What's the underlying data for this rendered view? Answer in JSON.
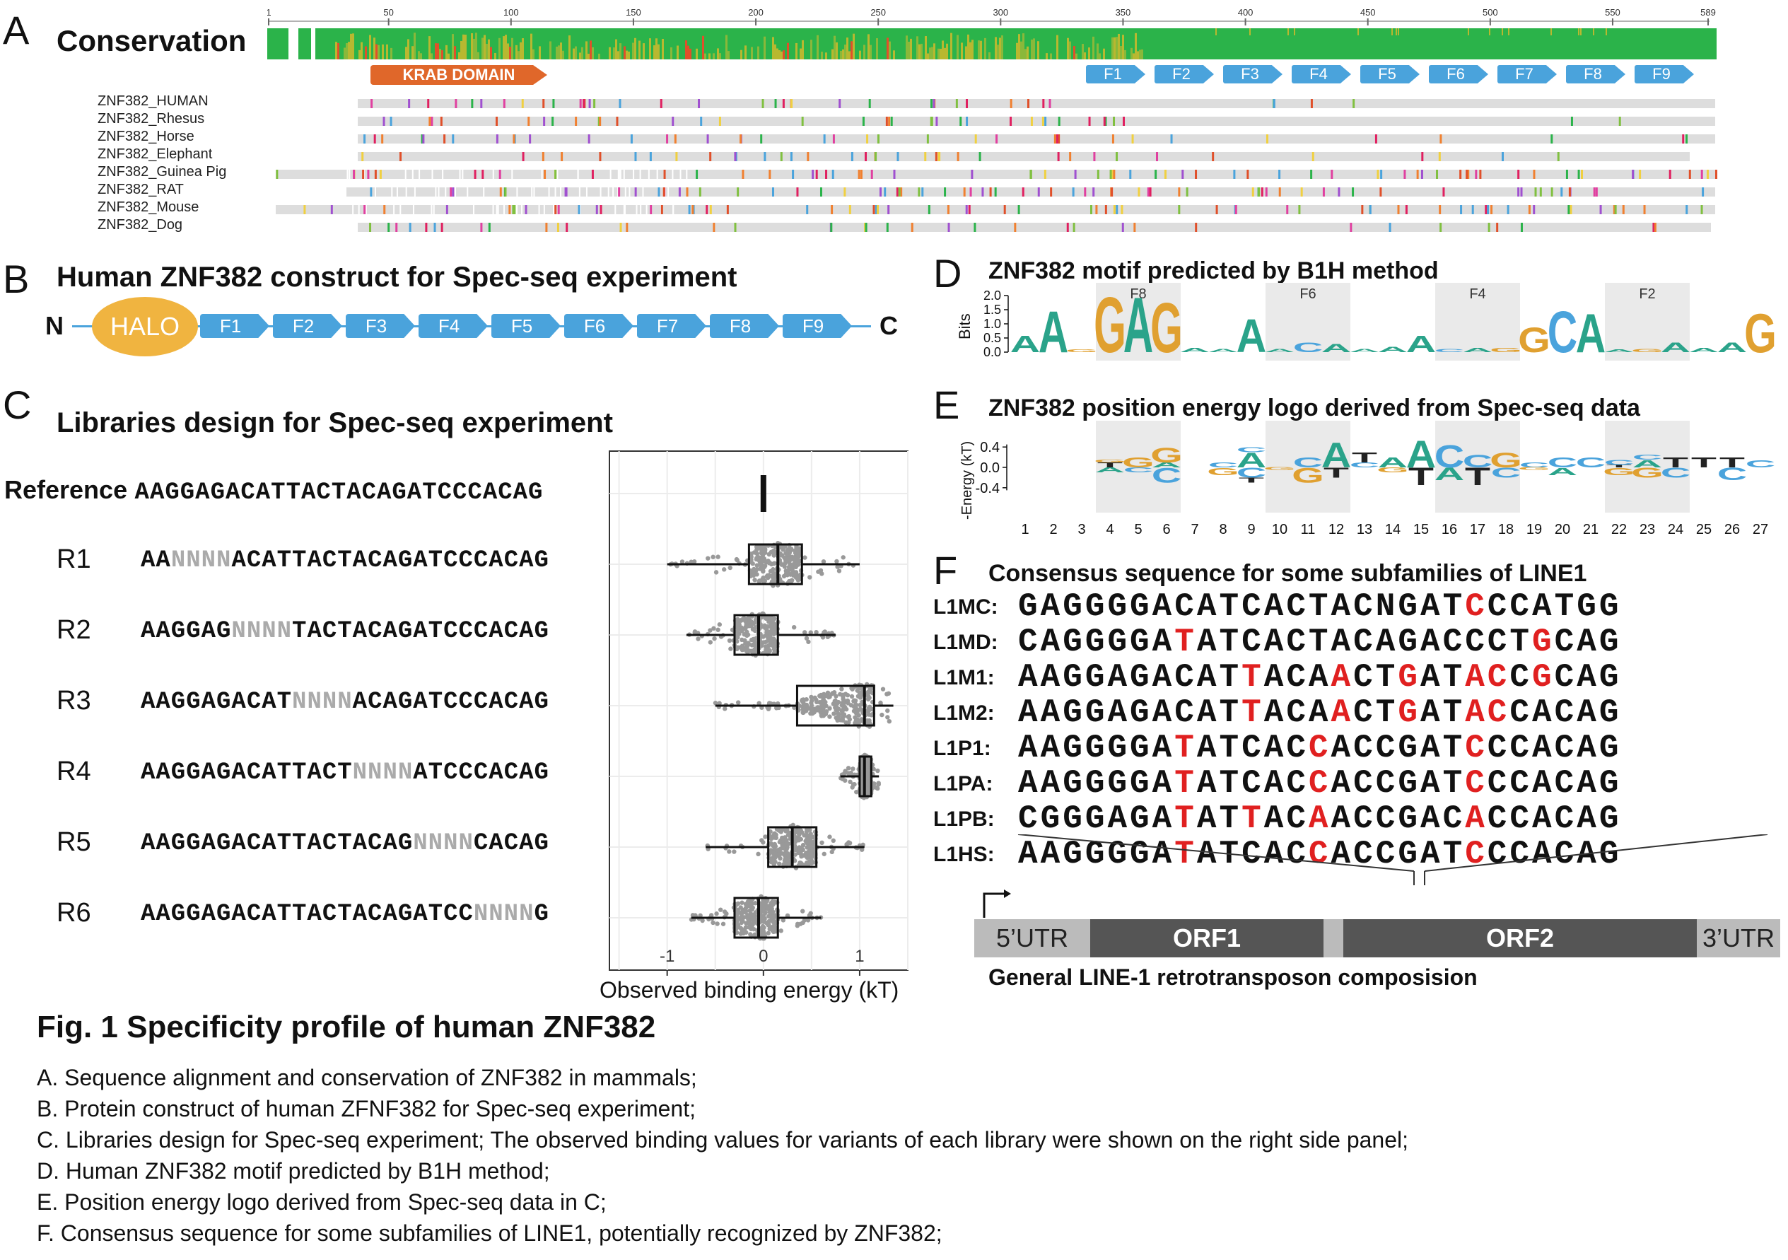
{
  "panelA": {
    "label": "A",
    "title": "Conservation",
    "ruler_ticks": [
      "1",
      "50",
      "100",
      "150",
      "200",
      "250",
      "300",
      "350",
      "400",
      "450",
      "500",
      "550",
      "589"
    ],
    "krab_label": "KRAB DOMAIN",
    "fingers": [
      "F1",
      "F2",
      "F3",
      "F4",
      "F5",
      "F6",
      "F7",
      "F8",
      "F9"
    ],
    "species": [
      "ZNF382_HUMAN",
      "ZNF382_Rhesus",
      "ZNF382_Horse",
      "ZNF382_Elephant",
      "ZNF382_Guinea Pig",
      "ZNF382_RAT",
      "ZNF382_Mouse",
      "ZNF382_Dog"
    ]
  },
  "panelB": {
    "label": "B",
    "title": "Human ZNF382 construct for Spec-seq experiment",
    "n_term": "N",
    "c_term": "C",
    "halo": "HALO",
    "fingers": [
      "F1",
      "F2",
      "F3",
      "F4",
      "F5",
      "F6",
      "F7",
      "F8",
      "F9"
    ]
  },
  "panelC": {
    "label": "C",
    "title": "Libraries design for Spec-seq experiment",
    "reference_label": "Reference",
    "reference_seq": "AAGGAGACATTACTACAGATCCCACAG",
    "libraries": [
      {
        "name": "R1",
        "pre": "AA",
        "nnnn": "NNNN",
        "post": "ACATTACTACAGATCCCACAG"
      },
      {
        "name": "R2",
        "pre": "AAGGAG",
        "nnnn": "NNNN",
        "post": "TACTACAGATCCCACAG"
      },
      {
        "name": "R3",
        "pre": "AAGGAGACAT",
        "nnnn": "NNNN",
        "post": "ACAGATCCCACAG"
      },
      {
        "name": "R4",
        "pre": "AAGGAGACATTACT",
        "nnnn": "NNNN",
        "post": "ATCCCACAG"
      },
      {
        "name": "R5",
        "pre": "AAGGAGACATTACTACAG",
        "nnnn": "NNNN",
        "post": "CACAG"
      },
      {
        "name": "R6",
        "pre": "AAGGAGACATTACTACAGATCC",
        "nnnn": "NNNN",
        "post": "G"
      }
    ],
    "xlabel": "Observed binding energy (kT)",
    "xticks": [
      "-1",
      "0",
      "1"
    ],
    "box": [
      {
        "q1": 0,
        "med": 0,
        "q3": 0,
        "wlo": -0.02,
        "whi": 0.02
      },
      {
        "q1": -0.15,
        "med": 0.15,
        "q3": 0.4,
        "wlo": -1.0,
        "whi": 1.0
      },
      {
        "q1": -0.3,
        "med": -0.05,
        "q3": 0.15,
        "wlo": -0.8,
        "whi": 0.75
      },
      {
        "q1": 0.35,
        "med": 1.05,
        "q3": 1.15,
        "wlo": -0.5,
        "whi": 1.35
      },
      {
        "q1": 1.0,
        "med": 1.05,
        "q3": 1.12,
        "wlo": 0.8,
        "whi": 1.2
      },
      {
        "q1": 0.05,
        "med": 0.3,
        "q3": 0.55,
        "wlo": -0.6,
        "whi": 1.05
      },
      {
        "q1": -0.3,
        "med": -0.05,
        "q3": 0.15,
        "wlo": -0.75,
        "whi": 0.6
      }
    ]
  },
  "panelD": {
    "label": "D",
    "title": "ZNF382 motif predicted by B1H method",
    "ylabel": "Bits",
    "yticks": [
      "2.0",
      "1.5",
      "1.0",
      "0.5",
      "0.0"
    ],
    "finger_labels": [
      "F8",
      "F6",
      "F4",
      "F2"
    ]
  },
  "panelE": {
    "label": "E",
    "title": "ZNF382 position energy logo derived from Spec-seq data",
    "ylabel": "-Energy (kT)",
    "yticks": [
      "0.4",
      "0.0",
      "-0.4"
    ],
    "positions": [
      "1",
      "2",
      "3",
      "4",
      "5",
      "6",
      "7",
      "8",
      "9",
      "10",
      "11",
      "12",
      "13",
      "14",
      "15",
      "16",
      "17",
      "18",
      "19",
      "20",
      "21",
      "22",
      "23",
      "24",
      "25",
      "26",
      "27"
    ]
  },
  "panelF": {
    "label": "F",
    "title": "Consensus sequence for some subfamilies of LINE1",
    "rows": [
      {
        "name": "L1MC:",
        "seq": "GAGGGGACATCACTACNGATCCCATGG",
        "red": [
          20
        ]
      },
      {
        "name": "L1MD:",
        "seq": "CAGGGGATATCACTACAGACCCTGCAG",
        "red": [
          7,
          23
        ]
      },
      {
        "name": "L1M1:",
        "seq": "AAGGAGACATTACAACTGATACCGCAG",
        "red": [
          10,
          14,
          17,
          20,
          21,
          23
        ]
      },
      {
        "name": "L1M2:",
        "seq": "AAGGAGACATTACAACTGATACCACAG",
        "red": [
          10,
          14,
          17,
          20,
          21
        ]
      },
      {
        "name": "L1P1:",
        "seq": "AAGGGGATATCACCACCGATCCCACAG",
        "red": [
          7,
          13,
          20
        ]
      },
      {
        "name": "L1PA:",
        "seq": "AAGGGGATATCACCACCGATCCCACAG",
        "red": [
          7,
          13,
          20
        ]
      },
      {
        "name": "L1PB:",
        "seq": "CGGGAGATATTACAACCGACACCACAG",
        "red": [
          7,
          10,
          13,
          20
        ]
      },
      {
        "name": "L1HS:",
        "seq": "AAGGGGATATCACCACCGATCCCACAG",
        "red": [
          7,
          13,
          20
        ]
      }
    ],
    "segments": [
      "5’UTR",
      "ORF1",
      "ORF2",
      "3’UTR"
    ],
    "composition_title": "General LINE-1 retrotransposon composision"
  },
  "caption": {
    "title": "Fig. 1 Specificity profile of human ZNF382",
    "lines": [
      "A. Sequence alignment and conservation of ZNF382 in mammals;",
      "B. Protein construct of human ZFNF382 for Spec-seq experiment;",
      "C. Libraries design for Spec-seq experiment; The observed binding values for variants of each library were shown on the right side panel;",
      "D. Human ZNF382 motif predicted by B1H method;",
      "E. Position energy logo derived from Spec-seq data in C;",
      "F. Consensus sequence for some subfamilies of LINE1, potentially recognized by ZNF382;"
    ]
  },
  "colors": {
    "finger": "#4aa3dc",
    "halo": "#f0b440",
    "krab": "#e0672a",
    "red": "#e02020",
    "dark": "#555555",
    "light": "#bbbbbb"
  }
}
